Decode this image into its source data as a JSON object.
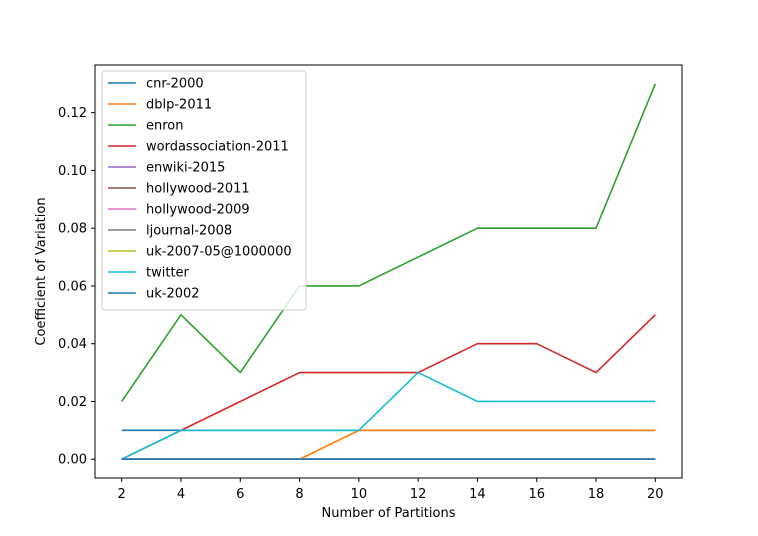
{
  "chart_data": {
    "type": "line",
    "title": "",
    "xlabel": "Number of Partitions",
    "ylabel": "Coefficient of Variation",
    "x": [
      2,
      4,
      6,
      8,
      10,
      12,
      14,
      16,
      18,
      20
    ],
    "xlim": [
      1.1,
      20.9
    ],
    "ylim": [
      -0.0065,
      0.1365
    ],
    "xticks": [
      2,
      4,
      6,
      8,
      10,
      12,
      14,
      16,
      18,
      20
    ],
    "yticks": [
      0.0,
      0.02,
      0.04,
      0.06,
      0.08,
      0.1,
      0.12
    ],
    "ytick_labels": [
      "0.00",
      "0.02",
      "0.04",
      "0.06",
      "0.08",
      "0.10",
      "0.12"
    ],
    "grid": false,
    "legend_position": "top-left",
    "series": [
      {
        "name": "cnr-2000",
        "color": "#1f77b4",
        "values": [
          0.01,
          0.01,
          0.01,
          0.01,
          0.01,
          0.01,
          0.01,
          0.01,
          0.01,
          0.01
        ]
      },
      {
        "name": "dblp-2011",
        "color": "#ff7f0e",
        "values": [
          0.0,
          0.0,
          0.0,
          0.0,
          0.01,
          0.01,
          0.01,
          0.01,
          0.01,
          0.01
        ]
      },
      {
        "name": "enron",
        "color": "#2ca02c",
        "values": [
          0.02,
          0.05,
          0.03,
          0.06,
          0.06,
          0.07,
          0.08,
          0.08,
          0.08,
          0.13
        ]
      },
      {
        "name": "wordassociation-2011",
        "color": "#d62728",
        "values": [
          0.0,
          0.01,
          0.02,
          0.03,
          0.03,
          0.03,
          0.04,
          0.04,
          0.03,
          0.05
        ]
      },
      {
        "name": "enwiki-2015",
        "color": "#9467bd",
        "values": [
          0.0,
          0.0,
          0.0,
          0.0,
          0.0,
          0.0,
          0.0,
          0.0,
          0.0,
          0.0
        ]
      },
      {
        "name": "hollywood-2011",
        "color": "#8c564b",
        "values": [
          0.0,
          0.0,
          0.0,
          0.0,
          0.0,
          0.0,
          0.0,
          0.0,
          0.0,
          0.0
        ]
      },
      {
        "name": "hollywood-2009",
        "color": "#e377c2",
        "values": [
          0.0,
          0.0,
          0.0,
          0.0,
          0.0,
          0.0,
          0.0,
          0.0,
          0.0,
          0.0
        ]
      },
      {
        "name": "ljournal-2008",
        "color": "#7f7f7f",
        "values": [
          0.0,
          0.0,
          0.0,
          0.0,
          0.0,
          0.0,
          0.0,
          0.0,
          0.0,
          0.0
        ]
      },
      {
        "name": "uk-2007-05@1000000",
        "color": "#bcbd22",
        "values": [
          0.0,
          0.0,
          0.0,
          0.0,
          0.0,
          0.0,
          0.0,
          0.0,
          0.0,
          0.0
        ]
      },
      {
        "name": "twitter",
        "color": "#17becf",
        "values": [
          0.0,
          0.01,
          0.01,
          0.01,
          0.01,
          0.03,
          0.02,
          0.02,
          0.02,
          0.02
        ]
      },
      {
        "name": "uk-2002",
        "color": "#1f77b4",
        "values": [
          0.0,
          0.0,
          0.0,
          0.0,
          0.0,
          0.0,
          0.0,
          0.0,
          0.0,
          0.0
        ]
      }
    ]
  }
}
